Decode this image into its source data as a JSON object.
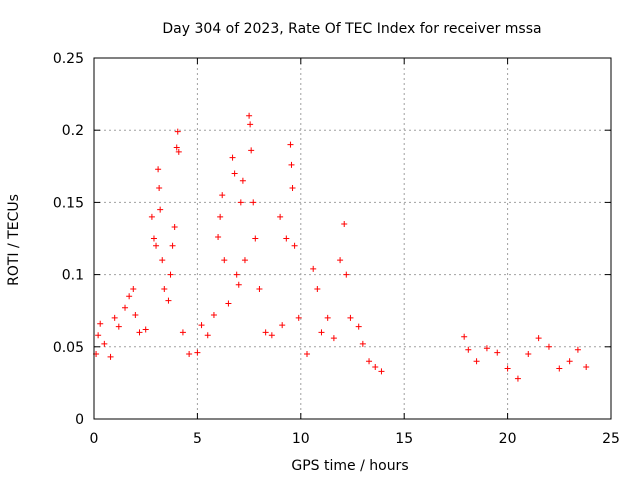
{
  "chart_data": {
    "type": "scatter",
    "title": "Day 304 of 2023, Rate Of TEC Index for receiver mssa",
    "xlabel": "GPS time / hours",
    "ylabel": "ROTI / TECUs",
    "xlim": [
      0,
      25
    ],
    "ylim": [
      0,
      0.25
    ],
    "x_ticks": [
      0,
      5,
      10,
      15,
      20,
      25
    ],
    "y_ticks": [
      0,
      0.05,
      0.1,
      0.15,
      0.2,
      0.25
    ],
    "x_tick_labels": [
      "0",
      "5",
      "10",
      "15",
      "20",
      "25"
    ],
    "y_tick_labels": [
      "0",
      "0.05",
      "0.1",
      "0.15",
      "0.2",
      "0.25"
    ],
    "grid": true,
    "legend": "none",
    "marker": "plus",
    "color": "#ff0000",
    "series": [
      {
        "points": [
          [
            0.1,
            0.045
          ],
          [
            0.2,
            0.058
          ],
          [
            0.3,
            0.066
          ],
          [
            0.5,
            0.052
          ],
          [
            0.8,
            0.043
          ],
          [
            1.0,
            0.07
          ],
          [
            1.2,
            0.064
          ],
          [
            1.5,
            0.077
          ],
          [
            1.7,
            0.085
          ],
          [
            1.9,
            0.09
          ],
          [
            2.0,
            0.072
          ],
          [
            2.2,
            0.06
          ],
          [
            2.5,
            0.062
          ],
          [
            2.8,
            0.14
          ],
          [
            2.9,
            0.125
          ],
          [
            3.0,
            0.12
          ],
          [
            3.1,
            0.173
          ],
          [
            3.15,
            0.16
          ],
          [
            3.2,
            0.145
          ],
          [
            3.3,
            0.11
          ],
          [
            3.4,
            0.09
          ],
          [
            3.6,
            0.082
          ],
          [
            3.7,
            0.1
          ],
          [
            3.8,
            0.12
          ],
          [
            3.9,
            0.133
          ],
          [
            4.0,
            0.188
          ],
          [
            4.05,
            0.199
          ],
          [
            4.1,
            0.185
          ],
          [
            4.3,
            0.06
          ],
          [
            4.6,
            0.045
          ],
          [
            5.0,
            0.046
          ],
          [
            5.2,
            0.065
          ],
          [
            5.5,
            0.058
          ],
          [
            5.8,
            0.072
          ],
          [
            6.0,
            0.126
          ],
          [
            6.1,
            0.14
          ],
          [
            6.2,
            0.155
          ],
          [
            6.3,
            0.11
          ],
          [
            6.5,
            0.08
          ],
          [
            6.7,
            0.181
          ],
          [
            6.8,
            0.17
          ],
          [
            6.9,
            0.1
          ],
          [
            7.0,
            0.093
          ],
          [
            7.1,
            0.15
          ],
          [
            7.2,
            0.165
          ],
          [
            7.3,
            0.11
          ],
          [
            7.5,
            0.21
          ],
          [
            7.55,
            0.204
          ],
          [
            7.6,
            0.186
          ],
          [
            7.7,
            0.15
          ],
          [
            7.8,
            0.125
          ],
          [
            8.0,
            0.09
          ],
          [
            8.3,
            0.06
          ],
          [
            8.6,
            0.058
          ],
          [
            9.0,
            0.14
          ],
          [
            9.1,
            0.065
          ],
          [
            9.3,
            0.125
          ],
          [
            9.5,
            0.19
          ],
          [
            9.55,
            0.176
          ],
          [
            9.6,
            0.16
          ],
          [
            9.7,
            0.12
          ],
          [
            9.9,
            0.07
          ],
          [
            10.3,
            0.045
          ],
          [
            10.6,
            0.104
          ],
          [
            10.8,
            0.09
          ],
          [
            11.0,
            0.06
          ],
          [
            11.3,
            0.07
          ],
          [
            11.6,
            0.056
          ],
          [
            11.9,
            0.11
          ],
          [
            12.1,
            0.135
          ],
          [
            12.2,
            0.1
          ],
          [
            12.4,
            0.07
          ],
          [
            12.8,
            0.064
          ],
          [
            13.0,
            0.052
          ],
          [
            13.3,
            0.04
          ],
          [
            13.6,
            0.036
          ],
          [
            13.9,
            0.033
          ],
          [
            17.9,
            0.057
          ],
          [
            18.1,
            0.048
          ],
          [
            18.5,
            0.04
          ],
          [
            19.0,
            0.049
          ],
          [
            19.5,
            0.046
          ],
          [
            20.0,
            0.035
          ],
          [
            20.5,
            0.028
          ],
          [
            21.0,
            0.045
          ],
          [
            21.5,
            0.056
          ],
          [
            22.0,
            0.05
          ],
          [
            22.5,
            0.035
          ],
          [
            23.0,
            0.04
          ],
          [
            23.4,
            0.048
          ],
          [
            23.8,
            0.036
          ]
        ]
      }
    ]
  }
}
